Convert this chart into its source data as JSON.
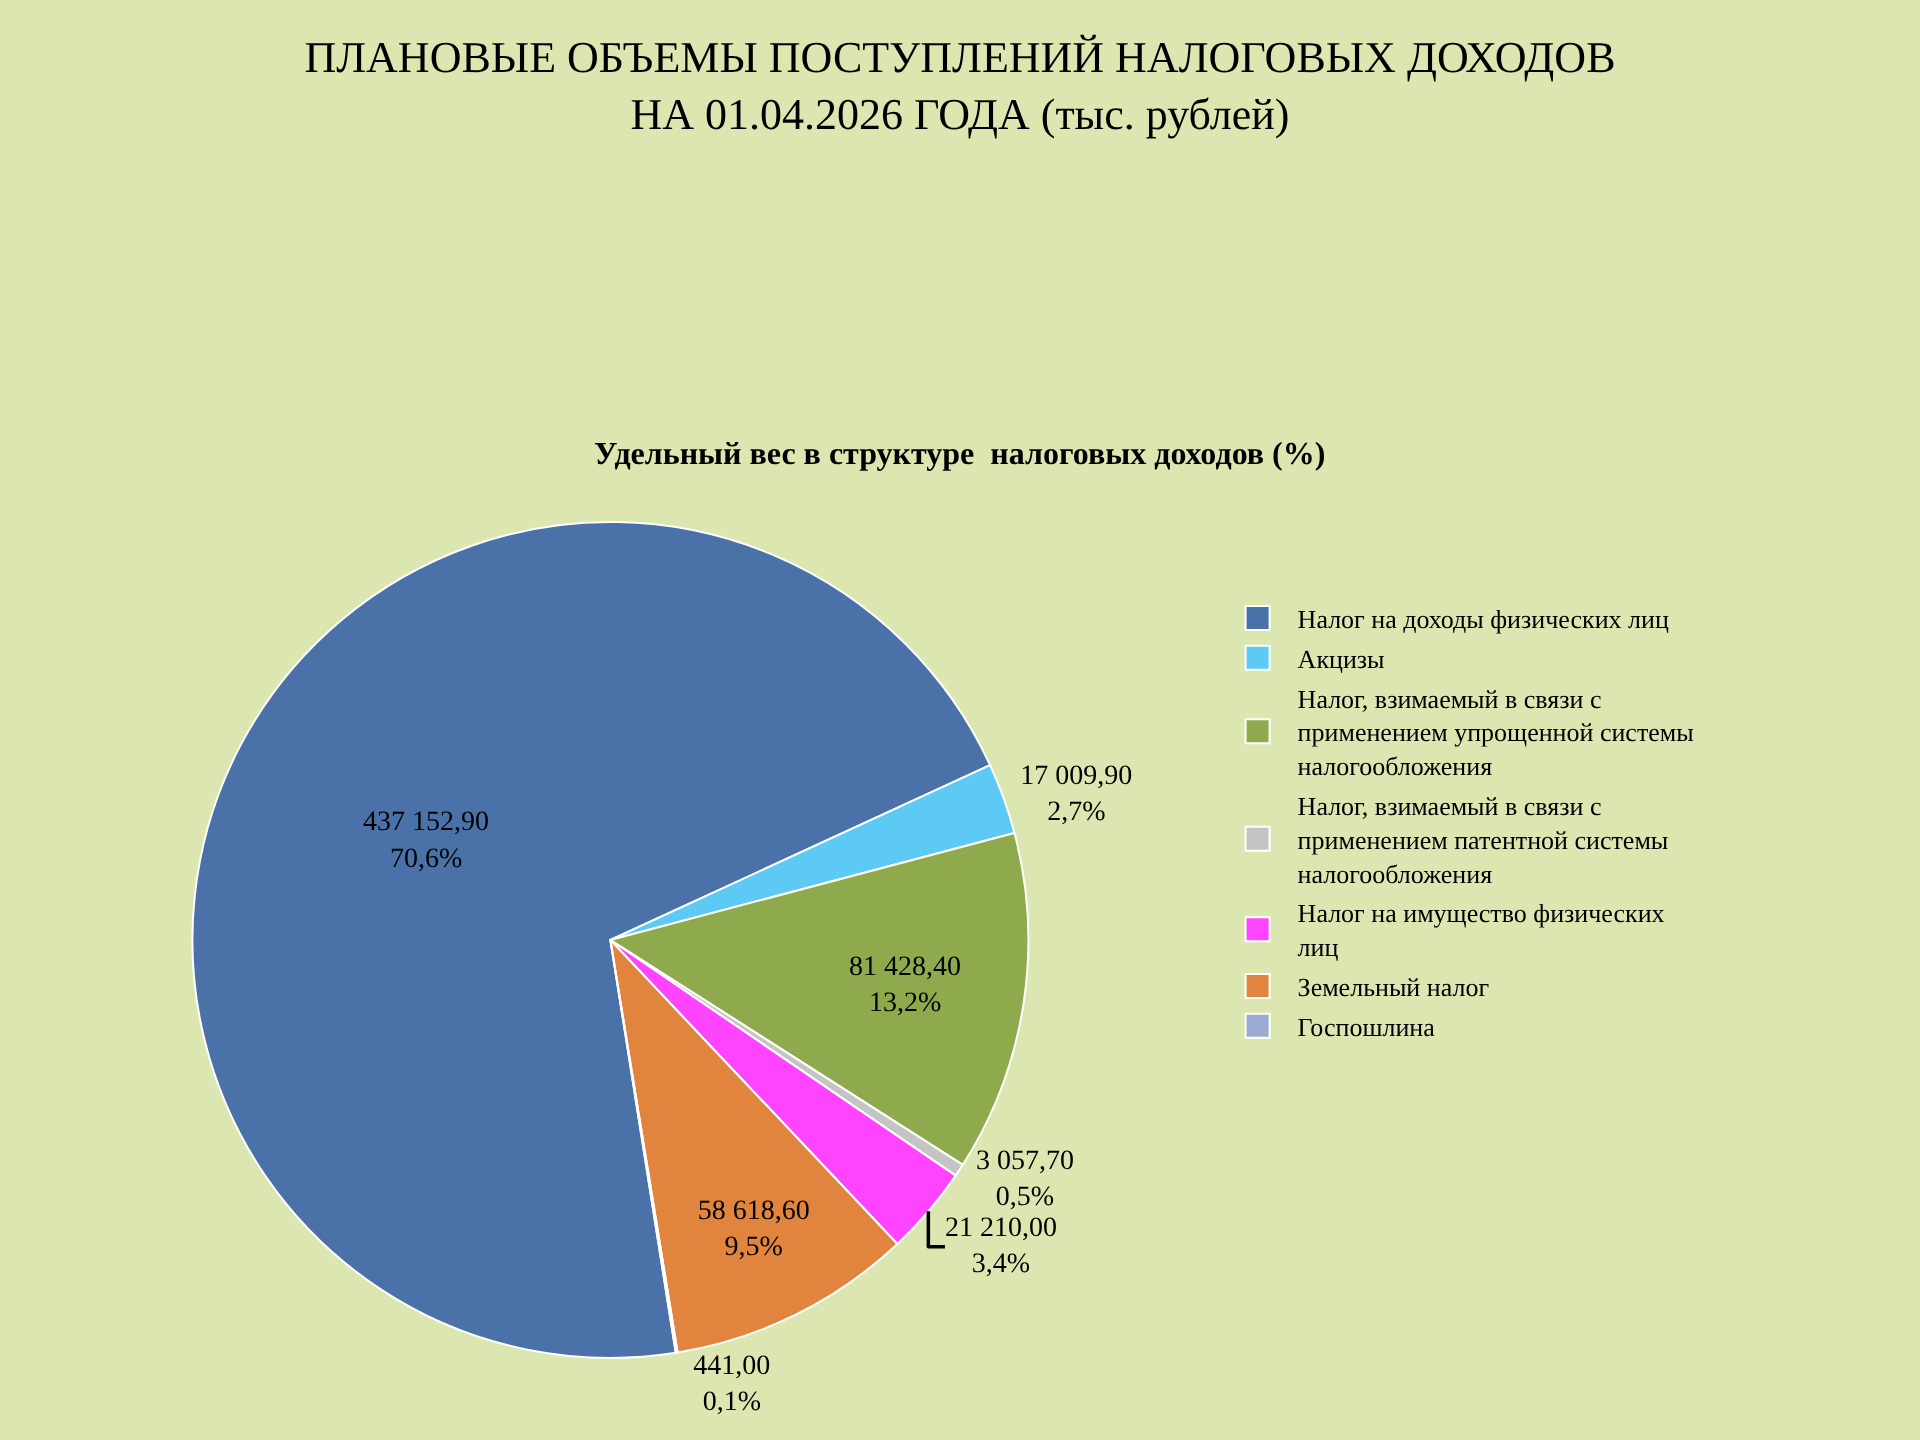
{
  "chart_data": {
    "type": "pie",
    "title": "ПЛАНОВЫЕ ОБЪЕМЫ ПОСТУПЛЕНИЙ НАЛОГОВЫХ ДОХОДОВ\nНА 01.04.2026 ГОДА (тыс. рублей)",
    "subtitle": "Удельный вес в структуре  налоговых доходов (%)",
    "categories": [
      "Налог на доходы физических лиц",
      "Акцизы",
      "Налог, взимаемый в связи с применением упрощенной системы налогообложения",
      "Налог, взимаемый в связи с применением патентной системы налогообложения",
      "Налог на имущество физических лиц",
      "Земельный налог",
      "Госпошлина"
    ],
    "values": [
      437152.9,
      17009.9,
      81428.4,
      3057.7,
      21210.0,
      58618.6,
      441.0
    ],
    "value_labels": [
      "437 152,90\n70,6%",
      "17 009,90\n2,7%",
      "81 428,40\n13,2%",
      "3 057,70\n0,5%",
      "21 210,00\n3,4%",
      "58 618,60\n9,5%",
      "441,00\n0,1%"
    ],
    "colors": [
      "#4a72a8",
      "#5ccaf5",
      "#8eaa4c",
      "#c4c4c4",
      "#ff44ff",
      "#e0843e",
      "#9aaad0"
    ],
    "legend": "right"
  }
}
